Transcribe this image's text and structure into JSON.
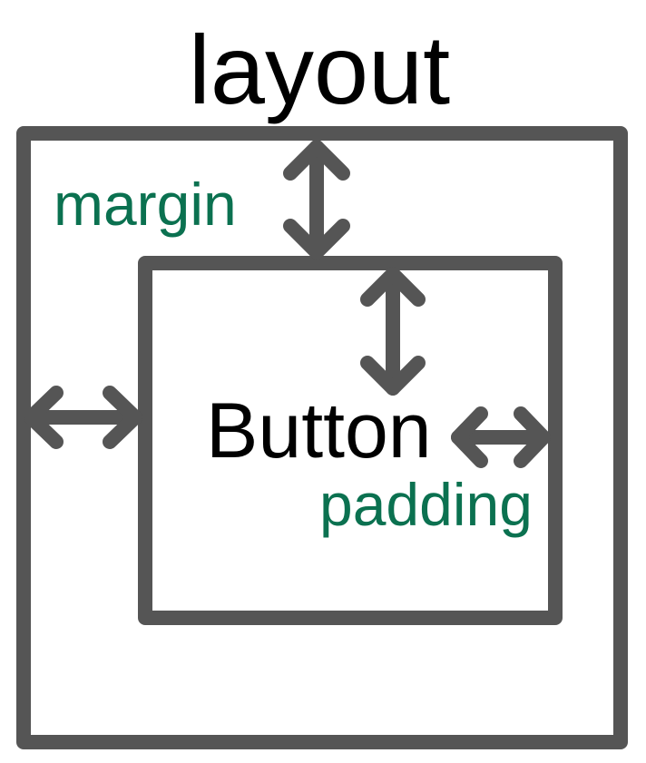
{
  "title": "layout",
  "button_label": "Button",
  "annotations": {
    "margin": "margin",
    "padding": "padding"
  },
  "colors": {
    "stroke": "#555555",
    "text": "#000000",
    "annotation": "#0b7150",
    "background": "#ffffff"
  }
}
